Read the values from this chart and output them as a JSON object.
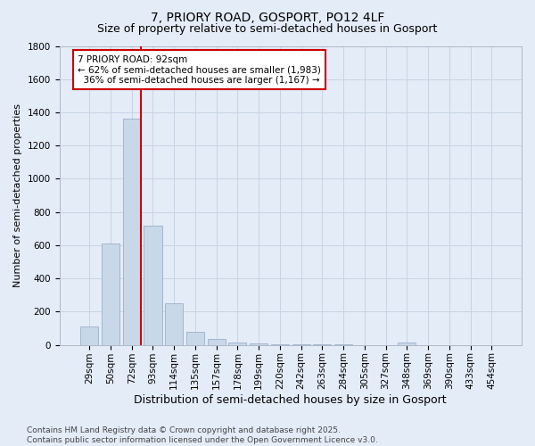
{
  "title": "7, PRIORY ROAD, GOSPORT, PO12 4LF",
  "subtitle": "Size of property relative to semi-detached houses in Gosport",
  "xlabel": "Distribution of semi-detached houses by size in Gosport",
  "ylabel": "Number of semi-detached properties",
  "categories": [
    "29sqm",
    "50sqm",
    "72sqm",
    "93sqm",
    "114sqm",
    "135sqm",
    "157sqm",
    "178sqm",
    "199sqm",
    "220sqm",
    "242sqm",
    "263sqm",
    "284sqm",
    "305sqm",
    "327sqm",
    "348sqm",
    "369sqm",
    "390sqm",
    "433sqm",
    "454sqm"
  ],
  "values": [
    110,
    610,
    1360,
    720,
    250,
    80,
    35,
    12,
    8,
    5,
    3,
    2,
    1,
    0,
    0,
    15,
    0,
    0,
    0,
    0
  ],
  "bar_color": "#c8d8e8",
  "bar_edge_color": "#9ab0c8",
  "vline_x_index": 2,
  "vline_color": "#cc0000",
  "annotation_text": "7 PRIORY ROAD: 92sqm\n← 62% of semi-detached houses are smaller (1,983)\n  36% of semi-detached houses are larger (1,167) →",
  "annotation_box_facecolor": "#ffffff",
  "annotation_border_color": "#cc0000",
  "ylim": [
    0,
    1800
  ],
  "yticks": [
    0,
    200,
    400,
    600,
    800,
    1000,
    1200,
    1400,
    1600,
    1800
  ],
  "grid_color": "#c8d4e4",
  "background_color": "#e4ecf8",
  "footer_line1": "Contains HM Land Registry data © Crown copyright and database right 2025.",
  "footer_line2": "Contains public sector information licensed under the Open Government Licence v3.0.",
  "title_fontsize": 10,
  "subtitle_fontsize": 9,
  "xlabel_fontsize": 9,
  "ylabel_fontsize": 8,
  "tick_fontsize": 7.5,
  "annotation_fontsize": 7.5,
  "footer_fontsize": 6.5
}
